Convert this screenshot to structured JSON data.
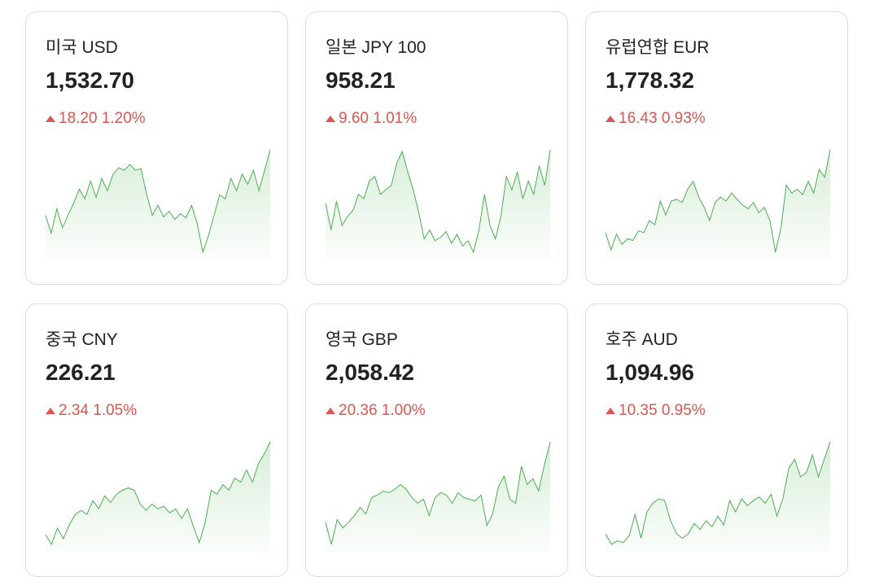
{
  "cards": [
    {
      "name": "미국 USD",
      "rate": "1,532.70",
      "change": "18.20",
      "change_pct": "1.20%",
      "spark": [
        60,
        38,
        68,
        45,
        60,
        75,
        92,
        80,
        102,
        82,
        105,
        90,
        110,
        118,
        115,
        122,
        115,
        117,
        85,
        60,
        72,
        58,
        65,
        55,
        62,
        57,
        72,
        50,
        15,
        35,
        60,
        85,
        80,
        105,
        90,
        110,
        98,
        115,
        90,
        115,
        140
      ]
    },
    {
      "name": "일본 JPY 100",
      "rate": "958.21",
      "change": "9.60",
      "change_pct": "1.01%",
      "spark": [
        70,
        40,
        72,
        45,
        55,
        62,
        80,
        75,
        95,
        100,
        80,
        85,
        90,
        115,
        128,
        105,
        85,
        60,
        30,
        40,
        28,
        32,
        38,
        25,
        35,
        22,
        28,
        15,
        40,
        80,
        45,
        30,
        55,
        100,
        85,
        105,
        75,
        95,
        80,
        112,
        90,
        130
      ]
    },
    {
      "name": "유럽연합 EUR",
      "rate": "1,778.32",
      "change": "16.43",
      "change_pct": "0.93%",
      "spark": [
        30,
        8,
        28,
        15,
        22,
        20,
        32,
        30,
        45,
        40,
        70,
        52,
        70,
        72,
        68,
        85,
        95,
        75,
        62,
        45,
        68,
        75,
        70,
        80,
        72,
        65,
        60,
        68,
        55,
        62,
        45,
        5,
        35,
        90,
        80,
        85,
        78,
        95,
        80,
        110,
        100,
        135
      ]
    },
    {
      "name": "중국 CNY",
      "rate": "226.21",
      "change": "2.34",
      "change_pct": "1.05%",
      "spark": [
        20,
        8,
        28,
        15,
        32,
        45,
        50,
        45,
        62,
        52,
        68,
        60,
        70,
        75,
        78,
        75,
        58,
        50,
        58,
        52,
        55,
        47,
        52,
        40,
        52,
        30,
        10,
        35,
        75,
        70,
        82,
        75,
        90,
        85,
        100,
        85,
        108,
        120,
        135
      ]
    },
    {
      "name": "영국 GBP",
      "rate": "2,058.42",
      "change": "20.36",
      "change_pct": "1.00%",
      "spark": [
        32,
        5,
        35,
        25,
        32,
        40,
        50,
        42,
        62,
        65,
        70,
        68,
        72,
        78,
        72,
        62,
        55,
        60,
        40,
        62,
        68,
        65,
        55,
        68,
        62,
        60,
        58,
        65,
        28,
        42,
        75,
        88,
        60,
        55,
        100,
        78,
        85,
        70,
        102,
        130
      ]
    },
    {
      "name": "호주 AUD",
      "rate": "1,094.96",
      "change": "10.35",
      "change_pct": "0.95%",
      "spark": [
        20,
        8,
        12,
        10,
        18,
        42,
        15,
        45,
        55,
        60,
        58,
        35,
        20,
        15,
        20,
        32,
        25,
        35,
        28,
        40,
        30,
        58,
        45,
        60,
        52,
        58,
        62,
        55,
        65,
        40,
        60,
        95,
        105,
        85,
        90,
        110,
        85,
        105,
        125
      ]
    }
  ]
}
